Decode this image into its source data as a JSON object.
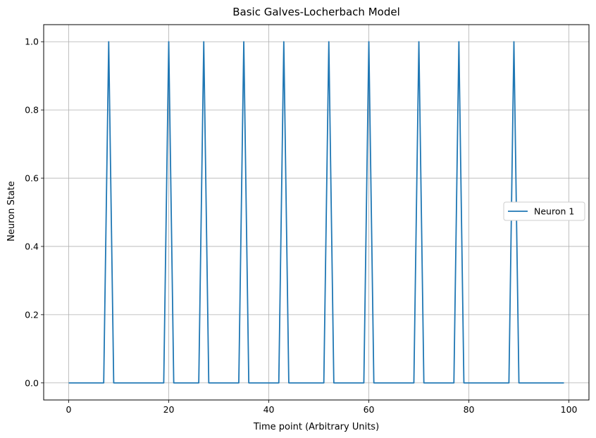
{
  "chart_data": {
    "type": "line",
    "title": "Basic Galves-Locherbach Model",
    "xlabel": "Time point (Arbitrary Units)",
    "ylabel": "Neuron State",
    "xlim": [
      -5,
      104
    ],
    "ylim": [
      -0.05,
      1.05
    ],
    "xticks": [
      0,
      20,
      40,
      60,
      80,
      100
    ],
    "yticks": [
      0.0,
      0.2,
      0.4,
      0.6,
      0.8,
      1.0
    ],
    "xtick_labels": [
      "0",
      "20",
      "40",
      "60",
      "80",
      "100"
    ],
    "ytick_labels": [
      "0.0",
      "0.2",
      "0.4",
      "0.6",
      "0.8",
      "1.0"
    ],
    "grid": true,
    "legend_position": "center-right",
    "series": [
      {
        "name": "Neuron 1",
        "color": "#1f77b4",
        "x": [
          0,
          1,
          2,
          3,
          4,
          5,
          6,
          7,
          8,
          9,
          10,
          11,
          12,
          13,
          14,
          15,
          16,
          17,
          18,
          19,
          20,
          21,
          22,
          23,
          24,
          25,
          26,
          27,
          28,
          29,
          30,
          31,
          32,
          33,
          34,
          35,
          36,
          37,
          38,
          39,
          40,
          41,
          42,
          43,
          44,
          45,
          46,
          47,
          48,
          49,
          50,
          51,
          52,
          53,
          54,
          55,
          56,
          57,
          58,
          59,
          60,
          61,
          62,
          63,
          64,
          65,
          66,
          67,
          68,
          69,
          70,
          71,
          72,
          73,
          74,
          75,
          76,
          77,
          78,
          79,
          80,
          81,
          82,
          83,
          84,
          85,
          86,
          87,
          88,
          89,
          90,
          91,
          92,
          93,
          94,
          95,
          96,
          97,
          98,
          99
        ],
        "y": [
          0,
          0,
          0,
          0,
          0,
          0,
          0,
          0,
          1,
          0,
          0,
          0,
          0,
          0,
          0,
          0,
          0,
          0,
          0,
          0,
          1,
          0,
          0,
          0,
          0,
          0,
          0,
          1,
          0,
          0,
          0,
          0,
          0,
          0,
          0,
          1,
          0,
          0,
          0,
          0,
          0,
          0,
          0,
          1,
          0,
          0,
          0,
          0,
          0,
          0,
          0,
          0,
          1,
          0,
          0,
          0,
          0,
          0,
          0,
          0,
          1,
          0,
          0,
          0,
          0,
          0,
          0,
          0,
          0,
          0,
          1,
          0,
          0,
          0,
          0,
          0,
          0,
          0,
          1,
          0,
          0,
          0,
          0,
          0,
          0,
          0,
          0,
          0,
          0,
          1,
          0,
          0,
          0,
          0,
          0,
          0,
          0,
          0,
          0,
          0
        ]
      }
    ]
  }
}
